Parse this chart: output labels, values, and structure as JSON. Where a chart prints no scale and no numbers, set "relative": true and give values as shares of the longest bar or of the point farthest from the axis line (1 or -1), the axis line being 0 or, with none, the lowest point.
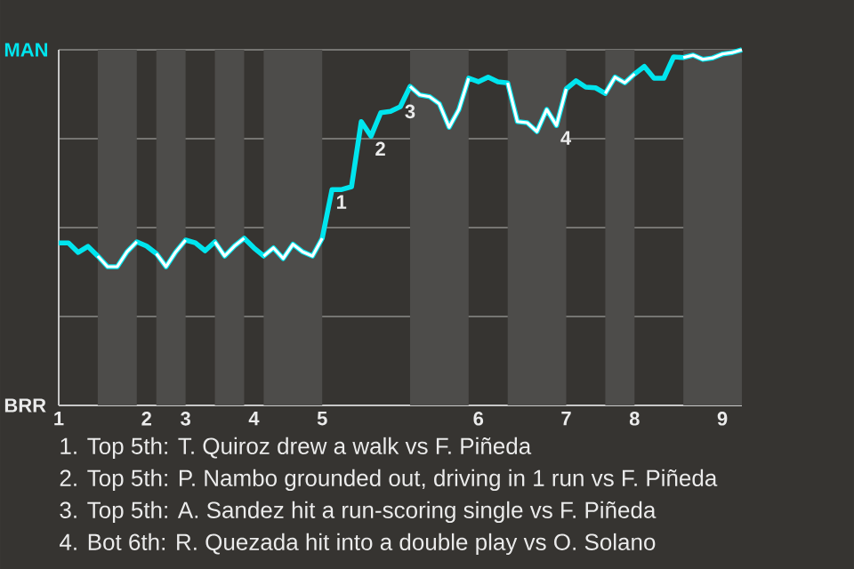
{
  "chart_data": {
    "type": "line",
    "relative": true,
    "grid": "y",
    "categories": [
      "1",
      null,
      null,
      null,
      null,
      null,
      null,
      null,
      null,
      "2",
      null,
      null,
      null,
      "3",
      null,
      null,
      null,
      null,
      null,
      null,
      "4",
      null,
      null,
      null,
      null,
      null,
      null,
      "5",
      null,
      null,
      null,
      null,
      null,
      null,
      null,
      null,
      null,
      null,
      null,
      null,
      null,
      null,
      null,
      "6",
      null,
      null,
      null,
      null,
      null,
      null,
      null,
      null,
      "7",
      null,
      null,
      null,
      null,
      null,
      null,
      "8",
      null,
      null,
      null,
      null,
      null,
      null,
      null,
      null,
      "9",
      null,
      null
    ],
    "series": [
      {
        "color": "#00e5ee",
        "values": [
          0.457,
          0.457,
          0.43,
          0.447,
          0.42,
          0.39,
          0.39,
          0.432,
          0.46,
          0.448,
          0.427,
          0.39,
          0.432,
          0.465,
          0.457,
          0.435,
          0.46,
          0.42,
          0.448,
          0.47,
          0.443,
          0.42,
          0.443,
          0.413,
          0.453,
          0.432,
          0.42,
          0.47,
          0.607,
          0.607,
          0.615,
          0.798,
          0.757,
          0.823,
          0.827,
          0.84,
          0.897,
          0.873,
          0.868,
          0.848,
          0.782,
          0.832,
          0.92,
          0.91,
          0.923,
          0.91,
          0.907,
          0.798,
          0.795,
          0.77,
          0.832,
          0.787,
          0.89,
          0.913,
          0.895,
          0.893,
          0.877,
          0.923,
          0.907,
          0.932,
          0.953,
          0.92,
          0.92,
          0.98,
          0.978,
          0.985,
          0.973,
          0.977,
          0.988,
          0.992,
          1
        ]
      },
      {
        "color": "#ffffff",
        "values": [
          null,
          null,
          null,
          null,
          0.42,
          0.39,
          0.39,
          0.432,
          0.46,
          null,
          0.427,
          0.39,
          0.432,
          0.465,
          null,
          null,
          0.46,
          0.42,
          0.448,
          0.47,
          null,
          0.42,
          0.443,
          0.413,
          0.453,
          0.432,
          0.42,
          0.47,
          null,
          null,
          null,
          null,
          null,
          null,
          null,
          null,
          0.897,
          0.873,
          0.868,
          0.848,
          0.782,
          0.832,
          0.92,
          null,
          null,
          null,
          0.907,
          0.798,
          0.795,
          0.77,
          0.832,
          0.787,
          0.89,
          null,
          null,
          null,
          0.877,
          0.923,
          0.907,
          0.932,
          null,
          null,
          null,
          null,
          0.978,
          0.985,
          0.973,
          0.977,
          0.988,
          0.992,
          1
        ]
      }
    ],
    "annotations": [
      {
        "text": "MAN"
      },
      {
        "text": "BRR"
      },
      {
        "text": "1",
        "y": 0.607
      },
      {
        "text": "2",
        "y": 0.757
      },
      {
        "text": "3",
        "y": 0.897
      },
      {
        "text": "4",
        "y": 0.787
      },
      "1. Top 5th: T. Quiroz drew a walk vs F. Piñeda",
      "2. Top 5th: P. Nambo grounded out, driving in 1 run vs F. Piñeda",
      "3. Top 5th: A. Sandez hit a run-scoring single vs F. Piñeda",
      "4. Bot 6th: R. Quezada hit into a double play vs O. Solano"
    ]
  }
}
